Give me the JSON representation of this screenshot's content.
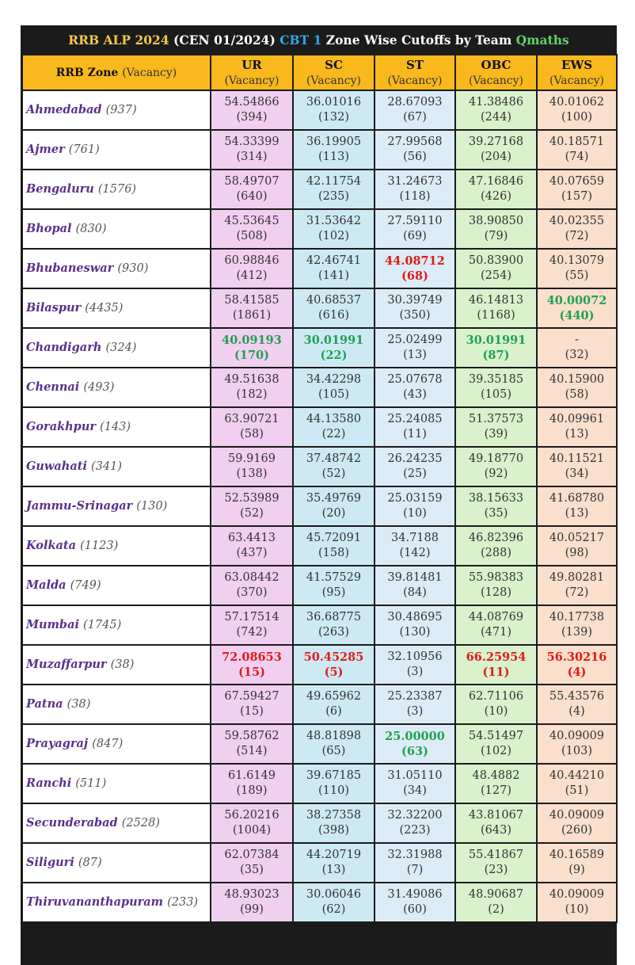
{
  "title": {
    "part1": "RRB ALP 2024",
    "part2": "(CEN 01/2024)",
    "part3": "CBT 1",
    "part4": "Zone Wise Cutoffs by Team",
    "part5": "Qmaths"
  },
  "headers": {
    "zone": "RRB Zone",
    "zone_sub": "(Vacancy)",
    "cols": [
      {
        "label": "UR",
        "sub": "(Vacancy)"
      },
      {
        "label": "SC",
        "sub": "(Vacancy)"
      },
      {
        "label": "ST",
        "sub": "(Vacancy)"
      },
      {
        "label": "OBC",
        "sub": "(Vacancy)"
      },
      {
        "label": "EWS",
        "sub": "(Vacancy)"
      }
    ]
  },
  "colors": {
    "header_bg": "#f9b81c",
    "ur_bg": "#f1cff1",
    "sc_bg": "#cdeaf4",
    "st_bg": "#dcecf6",
    "obc_bg": "#d9f2cc",
    "ews_bg": "#f9dfcc",
    "highlight_high": "#e01a1a",
    "highlight_low": "#21a052"
  },
  "rows": [
    {
      "zone": "Ahmedabad",
      "vac": "(937)",
      "cells": [
        {
          "score": "54.54866",
          "vac": "(394)"
        },
        {
          "score": "36.01016",
          "vac": "(132)"
        },
        {
          "score": "28.67093",
          "vac": "(67)"
        },
        {
          "score": "41.38486",
          "vac": "(244)"
        },
        {
          "score": "40.01062",
          "vac": "(100)"
        }
      ]
    },
    {
      "zone": "Ajmer",
      "vac": "(761)",
      "cells": [
        {
          "score": "54.33399",
          "vac": "(314)"
        },
        {
          "score": "36.19905",
          "vac": "(113)"
        },
        {
          "score": "27.99568",
          "vac": "(56)"
        },
        {
          "score": "39.27168",
          "vac": "(204)"
        },
        {
          "score": "40.18571",
          "vac": "(74)"
        }
      ]
    },
    {
      "zone": "Bengaluru",
      "vac": "(1576)",
      "cells": [
        {
          "score": "58.49707",
          "vac": "(640)"
        },
        {
          "score": "42.11754",
          "vac": "(235)"
        },
        {
          "score": "31.24673",
          "vac": "(118)"
        },
        {
          "score": "47.16846",
          "vac": "(426)"
        },
        {
          "score": "40.07659",
          "vac": "(157)"
        }
      ]
    },
    {
      "zone": "Bhopal",
      "vac": "(830)",
      "cells": [
        {
          "score": "45.53645",
          "vac": "(508)"
        },
        {
          "score": "31.53642",
          "vac": "(102)"
        },
        {
          "score": "27.59110",
          "vac": "(69)"
        },
        {
          "score": "38.90850",
          "vac": "(79)"
        },
        {
          "score": "40.02355",
          "vac": "(72)"
        }
      ]
    },
    {
      "zone": "Bhubaneswar",
      "vac": "(930)",
      "cells": [
        {
          "score": "60.98846",
          "vac": "(412)"
        },
        {
          "score": "42.46741",
          "vac": "(141)"
        },
        {
          "score": "44.08712",
          "vac": "(68)",
          "hl": "red"
        },
        {
          "score": "50.83900",
          "vac": "(254)"
        },
        {
          "score": "40.13079",
          "vac": "(55)"
        }
      ]
    },
    {
      "zone": "Bilaspur",
      "vac": "(4435)",
      "cells": [
        {
          "score": "58.41585",
          "vac": "(1861)"
        },
        {
          "score": "40.68537",
          "vac": "(616)"
        },
        {
          "score": "30.39749",
          "vac": "(350)"
        },
        {
          "score": "46.14813",
          "vac": "(1168)"
        },
        {
          "score": "40.00072",
          "vac": "(440)",
          "hl": "green"
        }
      ]
    },
    {
      "zone": "Chandigarh",
      "vac": "(324)",
      "cells": [
        {
          "score": "40.09193",
          "vac": "(170)",
          "hl": "green"
        },
        {
          "score": "30.01991",
          "vac": "(22)",
          "hl": "green"
        },
        {
          "score": "25.02499",
          "vac": "(13)"
        },
        {
          "score": "30.01991",
          "vac": "(87)",
          "hl": "green"
        },
        {
          "score": "-",
          "vac": "(32)"
        }
      ]
    },
    {
      "zone": "Chennai",
      "vac": "(493)",
      "cells": [
        {
          "score": "49.51638",
          "vac": "(182)"
        },
        {
          "score": "34.42298",
          "vac": "(105)"
        },
        {
          "score": "25.07678",
          "vac": "(43)"
        },
        {
          "score": "39.35185",
          "vac": "(105)"
        },
        {
          "score": "40.15900",
          "vac": "(58)"
        }
      ]
    },
    {
      "zone": "Gorakhpur",
      "vac": "(143)",
      "cells": [
        {
          "score": "63.90721",
          "vac": "(58)"
        },
        {
          "score": "44.13580",
          "vac": "(22)"
        },
        {
          "score": "25.24085",
          "vac": "(11)"
        },
        {
          "score": "51.37573",
          "vac": "(39)"
        },
        {
          "score": "40.09961",
          "vac": "(13)"
        }
      ]
    },
    {
      "zone": "Guwahati",
      "vac": "(341)",
      "cells": [
        {
          "score": "59.9169",
          "vac": "(138)"
        },
        {
          "score": "37.48742",
          "vac": "(52)"
        },
        {
          "score": "26.24235",
          "vac": "(25)"
        },
        {
          "score": "49.18770",
          "vac": "(92)"
        },
        {
          "score": "40.11521",
          "vac": "(34)"
        }
      ]
    },
    {
      "zone": "Jammu-Srinagar",
      "vac": "(130)",
      "cells": [
        {
          "score": "52.53989",
          "vac": "(52)"
        },
        {
          "score": "35.49769",
          "vac": "(20)"
        },
        {
          "score": "25.03159",
          "vac": "(10)"
        },
        {
          "score": "38.15633",
          "vac": "(35)"
        },
        {
          "score": "41.68780",
          "vac": "(13)"
        }
      ]
    },
    {
      "zone": "Kolkata",
      "vac": "(1123)",
      "cells": [
        {
          "score": "63.4413",
          "vac": "(437)"
        },
        {
          "score": "45.72091",
          "vac": "(158)"
        },
        {
          "score": "34.7188",
          "vac": "(142)"
        },
        {
          "score": "46.82396",
          "vac": "(288)"
        },
        {
          "score": "40.05217",
          "vac": "(98)"
        }
      ]
    },
    {
      "zone": "Malda",
      "vac": "(749)",
      "cells": [
        {
          "score": "63.08442",
          "vac": "(370)"
        },
        {
          "score": "41.57529",
          "vac": "(95)"
        },
        {
          "score": "39.81481",
          "vac": "(84)"
        },
        {
          "score": "55.98383",
          "vac": "(128)"
        },
        {
          "score": "49.80281",
          "vac": "(72)"
        }
      ]
    },
    {
      "zone": "Mumbai",
      "vac": "(1745)",
      "cells": [
        {
          "score": "57.17514",
          "vac": "(742)"
        },
        {
          "score": "36.68775",
          "vac": "(263)"
        },
        {
          "score": "30.48695",
          "vac": "(130)"
        },
        {
          "score": "44.08769",
          "vac": "(471)"
        },
        {
          "score": "40.17738",
          "vac": "(139)"
        }
      ]
    },
    {
      "zone": "Muzaffarpur",
      "vac": "(38)",
      "cells": [
        {
          "score": "72.08653",
          "vac": "(15)",
          "hl": "red"
        },
        {
          "score": "50.45285",
          "vac": "(5)",
          "hl": "red"
        },
        {
          "score": "32.10956",
          "vac": "(3)"
        },
        {
          "score": "66.25954",
          "vac": "(11)",
          "hl": "red"
        },
        {
          "score": "56.30216",
          "vac": "(4)",
          "hl": "red"
        }
      ]
    },
    {
      "zone": "Patna",
      "vac": "(38)",
      "cells": [
        {
          "score": "67.59427",
          "vac": "(15)"
        },
        {
          "score": "49.65962",
          "vac": "(6)"
        },
        {
          "score": "25.23387",
          "vac": "(3)"
        },
        {
          "score": "62.71106",
          "vac": "(10)"
        },
        {
          "score": "55.43576",
          "vac": "(4)"
        }
      ]
    },
    {
      "zone": "Prayagraj",
      "vac": "(847)",
      "cells": [
        {
          "score": "59.58762",
          "vac": "(514)"
        },
        {
          "score": "48.81898",
          "vac": "(65)"
        },
        {
          "score": "25.00000",
          "vac": "(63)",
          "hl": "green"
        },
        {
          "score": "54.51497",
          "vac": "(102)"
        },
        {
          "score": "40.09009",
          "vac": "(103)"
        }
      ]
    },
    {
      "zone": "Ranchi",
      "vac": "(511)",
      "cells": [
        {
          "score": "61.6149",
          "vac": "(189)"
        },
        {
          "score": "39.67185",
          "vac": "(110)"
        },
        {
          "score": "31.05110",
          "vac": "(34)"
        },
        {
          "score": "48.4882",
          "vac": "(127)"
        },
        {
          "score": "40.44210",
          "vac": "(51)"
        }
      ]
    },
    {
      "zone": "Secunderabad",
      "vac": "(2528)",
      "cells": [
        {
          "score": "56.20216",
          "vac": "(1004)"
        },
        {
          "score": "38.27358",
          "vac": "(398)"
        },
        {
          "score": "32.32200",
          "vac": "(223)"
        },
        {
          "score": "43.81067",
          "vac": "(643)"
        },
        {
          "score": "40.09009",
          "vac": "(260)"
        }
      ]
    },
    {
      "zone": "Siliguri",
      "vac": "(87)",
      "cells": [
        {
          "score": "62.07384",
          "vac": "(35)"
        },
        {
          "score": "44.20719",
          "vac": "(13)"
        },
        {
          "score": "32.31988",
          "vac": "(7)"
        },
        {
          "score": "55.41867",
          "vac": "(23)"
        },
        {
          "score": "40.16589",
          "vac": "(9)"
        }
      ]
    },
    {
      "zone": "Thiruvananthapuram",
      "vac": "(233)",
      "cells": [
        {
          "score": "48.93023",
          "vac": "(99)"
        },
        {
          "score": "30.06046",
          "vac": "(62)"
        },
        {
          "score": "31.49086",
          "vac": "(60)"
        },
        {
          "score": "48.90687",
          "vac": "(2)"
        },
        {
          "score": "40.09009",
          "vac": "(10)"
        }
      ]
    }
  ]
}
